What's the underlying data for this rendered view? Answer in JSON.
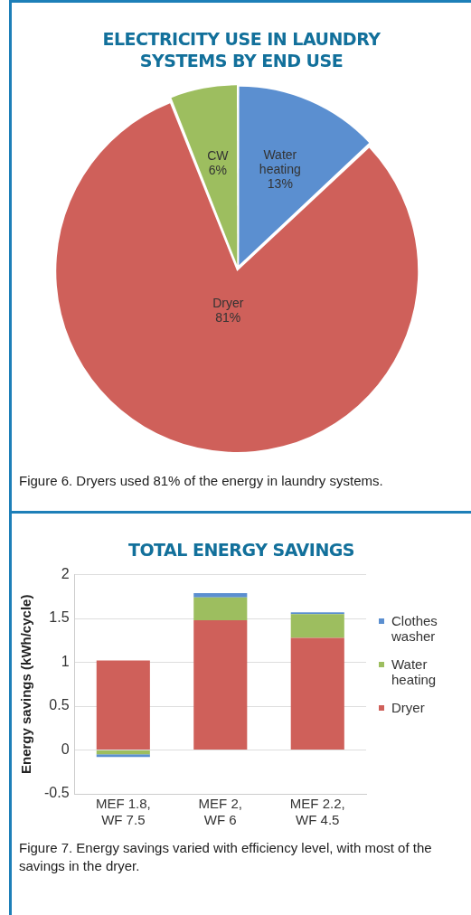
{
  "chart_data": [
    {
      "type": "pie",
      "title": "ELECTRICITY USE IN LAUNDRY SYSTEMS BY END USE",
      "categories": [
        "Water heating",
        "Dryer",
        "CW"
      ],
      "values": [
        13,
        81,
        6
      ],
      "colors": [
        "#5b8fd0",
        "#cf605a",
        "#9dbe5f"
      ],
      "value_labels": [
        "13%",
        "81%",
        "6%"
      ],
      "legend": false,
      "annotations": [
        "Figure 6. Dryers used 81% of the energy in laundry systems."
      ]
    },
    {
      "type": "bar",
      "title": "TOTAL ENERGY SAVINGS",
      "ylabel": "Energy savings (kWh/cycle)",
      "categories": [
        "MEF 1.8, WF 7.5",
        "MEF 2, WF 6",
        "MEF 2.2, WF 4.5"
      ],
      "stacked": true,
      "series": [
        {
          "name": "Dryer",
          "color": "#cf605a",
          "values": [
            1.02,
            1.48,
            1.28
          ]
        },
        {
          "name": "Water heating",
          "color": "#9dbe5f",
          "values": [
            -0.05,
            0.26,
            0.27
          ]
        },
        {
          "name": "Clothes washer",
          "color": "#5b8fd0",
          "values": [
            -0.03,
            0.05,
            0.02
          ]
        }
      ],
      "ylim": [
        -0.5,
        2
      ],
      "yticks": [
        -0.5,
        0,
        0.5,
        1,
        1.5,
        2
      ],
      "grid": "y",
      "legend": "right",
      "annotations": [
        "Figure 7. Energy savings varied with efficiency level, with most of the savings in the dryer."
      ]
    }
  ]
}
